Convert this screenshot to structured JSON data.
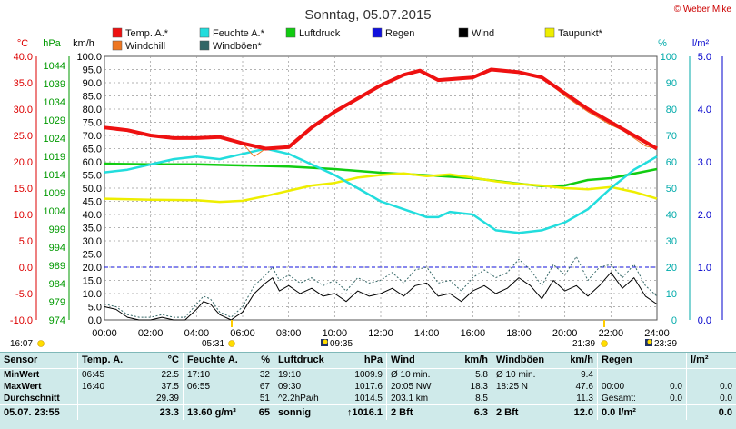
{
  "title": "Sonntag, 05.07.2015",
  "copyright": "© Weber Mike",
  "legend": [
    {
      "name": "Temp. A.*",
      "color": "#ee1111"
    },
    {
      "name": "Feuchte A.*",
      "color": "#22dddd"
    },
    {
      "name": "Luftdruck",
      "color": "#11cc11"
    },
    {
      "name": "Regen",
      "color": "#1111dd"
    },
    {
      "name": "Wind",
      "color": "#000000"
    },
    {
      "name": "Taupunkt*",
      "color": "#eeee00"
    },
    {
      "name": "Windchill",
      "color": "#ee7722"
    },
    {
      "name": "Windböen*",
      "color": "#336666"
    }
  ],
  "axes": {
    "temp": {
      "unit": "°C",
      "ticks": [
        "40.0",
        "35.0",
        "30.0",
        "25.0",
        "20.0",
        "15.0",
        "10.0",
        "5.0",
        "0.0",
        "-5.0",
        "-10.0"
      ],
      "color": "#dd0000"
    },
    "hpa": {
      "unit": "hPa",
      "ticks": [
        "1044",
        "1039",
        "1034",
        "1029",
        "1024",
        "1019",
        "1014",
        "1009",
        "1004",
        "999",
        "994",
        "989",
        "984",
        "979",
        "974"
      ],
      "color": "#009900"
    },
    "kmh": {
      "unit": "km/h",
      "ticks": [
        "100.0",
        "95.0",
        "90.0",
        "85.0",
        "80.0",
        "75.0",
        "70.0",
        "65.0",
        "60.0",
        "55.0",
        "50.0",
        "45.0",
        "40.0",
        "35.0",
        "30.0",
        "25.0",
        "20.0",
        "15.0",
        "10.0",
        "5.0",
        "0.0"
      ],
      "color": "#000000"
    },
    "pct": {
      "unit": "%",
      "ticks": [
        "100",
        "90",
        "80",
        "70",
        "60",
        "50",
        "40",
        "30",
        "20",
        "10",
        "0"
      ],
      "color": "#00aaaa"
    },
    "rain": {
      "unit": "l/m²",
      "ticks": [
        "5.0",
        "4.0",
        "3.0",
        "2.0",
        "1.0",
        "0.0"
      ],
      "color": "#0000cc"
    },
    "time_ticks": [
      "00:00",
      "02:00",
      "04:00",
      "06:00",
      "08:00",
      "10:00",
      "12:00",
      "14:00",
      "16:00",
      "18:00",
      "20:00",
      "22:00",
      "24:00"
    ]
  },
  "sun_events": {
    "sunrise": "05:31",
    "sunset": "21:39",
    "moonset": "09:35",
    "moonrise": "23:39",
    "left_time": "16:07"
  },
  "chart_data": {
    "type": "line",
    "x_unit": "hour",
    "xlim": [
      0,
      24
    ],
    "series": [
      {
        "name": "Temp. A.*",
        "axis": "temp",
        "color": "#ee1111",
        "x": [
          0,
          1,
          2,
          3,
          4,
          5,
          6,
          7,
          8,
          9,
          10,
          11,
          12,
          13,
          13.7,
          14.5,
          16,
          16.8,
          18,
          19,
          20,
          21,
          22,
          23,
          24
        ],
        "y": [
          26.5,
          26.0,
          25.0,
          24.5,
          24.5,
          24.7,
          23.5,
          22.5,
          22.8,
          26.5,
          29.5,
          32.0,
          34.5,
          36.5,
          37.3,
          35.5,
          36.0,
          37.5,
          37.0,
          36.0,
          33.0,
          30.0,
          27.5,
          25.0,
          22.5
        ]
      },
      {
        "name": "Windchill",
        "axis": "temp",
        "color": "#ee7722",
        "x": [
          0,
          1,
          2,
          3,
          4,
          5,
          6,
          6.5,
          7,
          8,
          9,
          10,
          11,
          12,
          13,
          13.7,
          14.5,
          16,
          16.8,
          18,
          19,
          20,
          21,
          22,
          22.5,
          23,
          23.5,
          24
        ],
        "y": [
          26.5,
          26.0,
          25.0,
          24.5,
          24.5,
          24.7,
          23.5,
          21.0,
          22.5,
          22.8,
          26.5,
          29.5,
          32.0,
          34.5,
          36.5,
          37.3,
          35.5,
          36.0,
          37.5,
          37.0,
          36.0,
          32.5,
          29.5,
          27.0,
          26.0,
          24.5,
          23.0,
          22.5
        ]
      },
      {
        "name": "Feuchte A.*",
        "axis": "pct",
        "color": "#22dddd",
        "x": [
          0,
          1,
          2,
          3,
          4,
          5,
          6,
          7,
          8,
          9,
          10,
          11,
          12,
          13,
          14,
          14.5,
          15,
          16,
          17,
          18,
          19,
          20,
          21,
          22,
          23,
          24
        ],
        "y": [
          56,
          57,
          59,
          61,
          62,
          61,
          63,
          65,
          63,
          59,
          55,
          50,
          45,
          42,
          39,
          39,
          41,
          40,
          34,
          33,
          34,
          37,
          42,
          50,
          57,
          62
        ]
      },
      {
        "name": "Luftdruck",
        "axis": "hpa",
        "color": "#11cc11",
        "x": [
          0,
          2,
          4,
          6,
          8,
          10,
          12,
          14,
          16,
          18,
          19,
          20,
          21,
          22,
          24
        ],
        "y": [
          1017.0,
          1016.8,
          1016.8,
          1016.5,
          1016.2,
          1015.5,
          1014.5,
          1013.8,
          1013.0,
          1011.5,
          1010.8,
          1011.0,
          1012.5,
          1013.0,
          1015.5
        ]
      },
      {
        "name": "Taupunkt*",
        "axis": "temp",
        "color": "#eeee00",
        "x": [
          0,
          2,
          4,
          5,
          6,
          7,
          8,
          9,
          10,
          11,
          12,
          13,
          14,
          15,
          16,
          17,
          18,
          19,
          20,
          21,
          22,
          23,
          24
        ],
        "y": [
          13.0,
          12.8,
          12.7,
          12.4,
          12.6,
          13.5,
          14.5,
          15.5,
          16.0,
          17.0,
          17.5,
          17.8,
          17.3,
          17.6,
          17.0,
          16.3,
          15.8,
          15.5,
          15.0,
          14.8,
          15.2,
          14.3,
          13.0
        ]
      },
      {
        "name": "Wind",
        "axis": "kmh",
        "color": "#000000",
        "x": [
          0,
          0.5,
          1,
          1.5,
          2,
          2.5,
          3,
          3.5,
          4,
          4.3,
          4.6,
          5,
          5.5,
          6,
          6.5,
          7,
          7.3,
          7.6,
          8,
          8.5,
          9,
          9.5,
          10,
          10.5,
          11,
          11.5,
          12,
          12.5,
          13,
          13.5,
          14,
          14.5,
          15,
          15.5,
          16,
          16.5,
          17,
          17.5,
          18,
          18.5,
          19,
          19.5,
          20,
          20.5,
          21,
          21.5,
          22,
          22.5,
          23,
          23.5,
          24
        ],
        "y": [
          5,
          4,
          1,
          0,
          0,
          1,
          0,
          0,
          4,
          7,
          6,
          2,
          0,
          3,
          10,
          14,
          16,
          11,
          13,
          10,
          12,
          9,
          10,
          7,
          11,
          9,
          10,
          12,
          9,
          13,
          14,
          9,
          10,
          7,
          11,
          13,
          10,
          12,
          16,
          13,
          8,
          15,
          11,
          13,
          9,
          13,
          18,
          12,
          16,
          9,
          6
        ]
      },
      {
        "name": "Windböen*",
        "axis": "kmh",
        "color": "#336666",
        "dashed": true,
        "x": [
          0,
          0.5,
          1,
          1.5,
          2,
          2.5,
          3,
          3.5,
          4,
          4.3,
          4.6,
          5,
          5.5,
          6,
          6.5,
          7,
          7.3,
          7.6,
          8,
          8.5,
          9,
          9.5,
          10,
          10.5,
          11,
          11.5,
          12,
          12.5,
          13,
          13.5,
          14,
          14.5,
          15,
          15.5,
          16,
          16.5,
          17,
          17.5,
          18,
          18.5,
          19,
          19.5,
          20,
          20.5,
          21,
          21.5,
          22,
          22.5,
          23,
          23.5,
          24
        ],
        "y": [
          6,
          5,
          2,
          1,
          1,
          2,
          1,
          1,
          6,
          9,
          8,
          3,
          1,
          5,
          13,
          17,
          20,
          15,
          17,
          14,
          16,
          13,
          15,
          11,
          16,
          14,
          15,
          18,
          14,
          19,
          20,
          14,
          15,
          11,
          16,
          19,
          16,
          18,
          23,
          19,
          13,
          21,
          17,
          24,
          15,
          20,
          21,
          16,
          21,
          13,
          9
        ]
      }
    ]
  },
  "stats": {
    "rowlabels": [
      "Sensor",
      "MinWert",
      "MaxWert",
      "Durchschnitt",
      "05.07. 23:55"
    ],
    "cols": [
      {
        "h1": "Temp. A.",
        "h2": "°C",
        "rows": [
          [
            "06:45",
            "22.5"
          ],
          [
            "16:40",
            "37.5"
          ],
          [
            "",
            "29.39"
          ]
        ],
        "cur": [
          "",
          "23.3"
        ]
      },
      {
        "h1": "Feuchte A.",
        "h2": "%",
        "rows": [
          [
            "17:10",
            "32"
          ],
          [
            "06:55",
            "67"
          ],
          [
            "",
            "51"
          ]
        ],
        "cur": [
          "13.60 g/m³",
          "65"
        ]
      },
      {
        "h1": "Luftdruck",
        "h2": "hPa",
        "rows": [
          [
            "19:10",
            "1009.9"
          ],
          [
            "09:30",
            "1017.6"
          ],
          [
            "^2.2hPa/h",
            "1014.5"
          ]
        ],
        "cur": [
          "sonnig",
          "↑1016.1"
        ]
      },
      {
        "h1": "Wind",
        "h2": "km/h",
        "rows": [
          [
            "Ø 10 min.",
            "5.8"
          ],
          [
            "20:05   NW",
            "18.3"
          ],
          [
            "203.1 km",
            "8.5"
          ]
        ],
        "cur": [
          "2 Bft",
          "6.3"
        ]
      },
      {
        "h1": "Windböen",
        "h2": "km/h",
        "rows": [
          [
            "Ø 10 min.",
            "9.4"
          ],
          [
            "18:25   N",
            "47.6"
          ],
          [
            "",
            "11.3"
          ]
        ],
        "cur": [
          "2 Bft",
          "12.0"
        ]
      },
      {
        "h1": "Regen",
        "h2": "",
        "rows": [
          [
            "",
            ""
          ],
          [
            "00:00",
            "0.0"
          ],
          [
            "Gesamt:",
            "0.0"
          ]
        ],
        "cur": [
          "0.0 l/m²",
          ""
        ]
      },
      {
        "h1": "l/m²",
        "h2": "",
        "rows": [
          [
            "",
            ""
          ],
          [
            "",
            "0.0"
          ],
          [
            "",
            "0.0"
          ]
        ],
        "cur": [
          "",
          "0.0"
        ]
      }
    ]
  }
}
